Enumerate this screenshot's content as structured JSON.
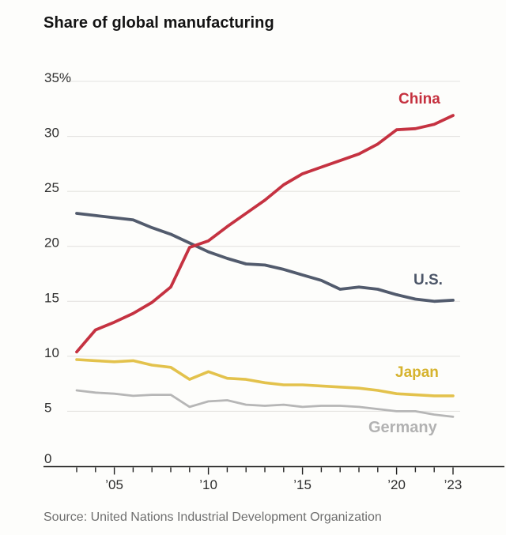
{
  "chart": {
    "title": "Share of global manufacturing",
    "source": "Source: United Nations Industrial Development Organization"
  },
  "chart_data": {
    "type": "line",
    "title": "Share of global manufacturing",
    "x": [
      2003,
      2004,
      2005,
      2006,
      2007,
      2008,
      2009,
      2010,
      2011,
      2012,
      2013,
      2014,
      2015,
      2016,
      2017,
      2018,
      2019,
      2020,
      2021,
      2022,
      2023
    ],
    "x_axis": {
      "range": [
        2003,
        2023
      ],
      "labeled_years": [
        {
          "year": 2005,
          "label": "’05"
        },
        {
          "year": 2010,
          "label": "’10"
        },
        {
          "year": 2015,
          "label": "’15"
        },
        {
          "year": 2020,
          "label": "’20"
        },
        {
          "year": 2023,
          "label": "’23"
        }
      ]
    },
    "y_axis": {
      "range": [
        0,
        35
      ],
      "unit": "%",
      "ticks": [
        {
          "value": 0,
          "label": "0"
        },
        {
          "value": 5,
          "label": "5"
        },
        {
          "value": 10,
          "label": "10"
        },
        {
          "value": 15,
          "label": "15"
        },
        {
          "value": 20,
          "label": "20"
        },
        {
          "value": 25,
          "label": "25"
        },
        {
          "value": 30,
          "label": "30"
        },
        {
          "value": 35,
          "label": "35%"
        }
      ]
    },
    "grid": true,
    "legend_position": "inline-right",
    "series": [
      {
        "name": "China",
        "color": "#c53241",
        "label_color": "#c5313f",
        "width": 3.8,
        "values": [
          10.4,
          12.4,
          13.1,
          13.9,
          14.9,
          16.3,
          19.9,
          20.5,
          21.8,
          23.0,
          24.2,
          25.6,
          26.6,
          27.2,
          27.8,
          28.4,
          29.3,
          30.6,
          30.7,
          31.1,
          31.9
        ]
      },
      {
        "name": "U.S.",
        "color": "#525b6d",
        "label_color": "#4c5668",
        "width": 3.8,
        "values": [
          23.0,
          22.8,
          22.6,
          22.4,
          21.7,
          21.1,
          20.3,
          19.5,
          18.9,
          18.4,
          18.3,
          17.9,
          17.4,
          16.9,
          16.1,
          16.3,
          16.1,
          15.6,
          15.2,
          15.0,
          15.1
        ]
      },
      {
        "name": "Japan",
        "color": "#e3c24c",
        "label_color": "#d6b32e",
        "width": 3.6,
        "values": [
          9.7,
          9.6,
          9.5,
          9.6,
          9.2,
          9.0,
          7.9,
          8.6,
          8.0,
          7.9,
          7.6,
          7.4,
          7.4,
          7.3,
          7.2,
          7.1,
          6.9,
          6.6,
          6.5,
          6.4,
          6.4
        ]
      },
      {
        "name": "Germany",
        "color": "#b6b6b6",
        "label_color": "#b2b2b2",
        "width": 2.8,
        "values": [
          6.9,
          6.7,
          6.6,
          6.4,
          6.5,
          6.5,
          5.4,
          5.9,
          6.0,
          5.6,
          5.5,
          5.6,
          5.4,
          5.5,
          5.5,
          5.4,
          5.2,
          5.0,
          5.0,
          4.7,
          4.5
        ]
      }
    ],
    "style": {
      "grid_color": "#e4e3e0",
      "axis_color": "#1a1a1a",
      "tick_color": "#222222"
    }
  }
}
